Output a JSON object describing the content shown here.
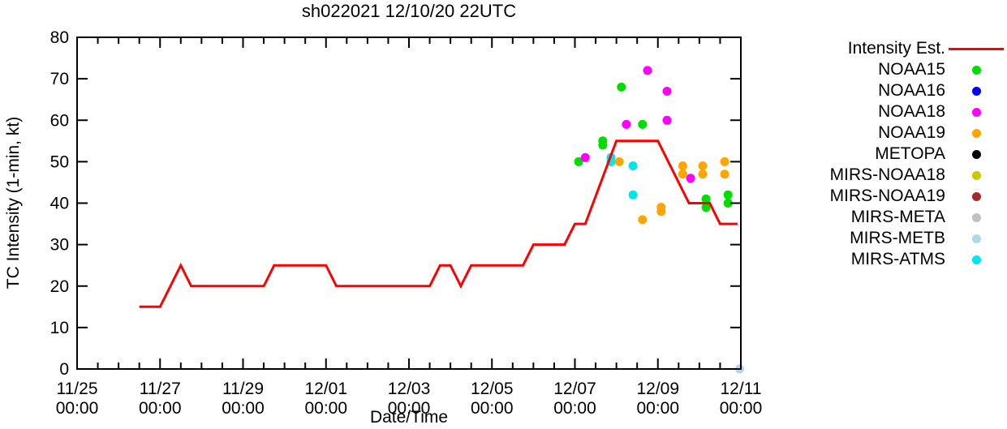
{
  "chart_data": {
    "type": "line+scatter",
    "title": "sh022021 12/10/20 22UTC",
    "xlabel": "Date/Time",
    "ylabel": "TC Intensity (1-min, kt)",
    "x_axis": {
      "unit": "days since 11/25 00:00",
      "range_days": [
        0,
        16
      ],
      "major_tick_every_days": 2,
      "minor_tick_every_days": 0.5,
      "tick_labels": [
        "11/25",
        "11/27",
        "11/29",
        "12/01",
        "12/03",
        "12/05",
        "12/07",
        "12/09",
        "12/11"
      ],
      "tick_time_label": "00:00"
    },
    "y_axis": {
      "range": [
        0,
        80
      ],
      "ticks": [
        0,
        10,
        20,
        30,
        40,
        50,
        60,
        70,
        80
      ]
    },
    "intensity_line": {
      "label": "Intensity Est.",
      "color": "#ff0000",
      "points": [
        [
          1.5,
          15
        ],
        [
          2.0,
          15
        ],
        [
          2.5,
          25
        ],
        [
          2.75,
          20
        ],
        [
          4.5,
          20
        ],
        [
          4.75,
          25
        ],
        [
          6.0,
          25
        ],
        [
          6.25,
          20
        ],
        [
          8.5,
          20
        ],
        [
          8.75,
          25
        ],
        [
          9.0,
          25
        ],
        [
          9.25,
          20
        ],
        [
          9.5,
          25
        ],
        [
          10.75,
          25
        ],
        [
          11.0,
          30
        ],
        [
          11.75,
          30
        ],
        [
          12.0,
          35
        ],
        [
          12.25,
          35
        ],
        [
          13.0,
          55
        ],
        [
          14.0,
          55
        ],
        [
          14.75,
          40
        ],
        [
          15.25,
          40
        ],
        [
          15.5,
          35
        ],
        [
          15.92,
          35
        ]
      ]
    },
    "series": [
      {
        "name": "NOAA15",
        "color": "#00dd00",
        "points": [
          [
            12.09,
            50
          ],
          [
            12.67,
            55
          ],
          [
            12.67,
            54
          ],
          [
            13.12,
            68
          ],
          [
            13.63,
            59
          ],
          [
            15.16,
            41
          ],
          [
            15.16,
            39
          ],
          [
            15.69,
            42
          ],
          [
            15.69,
            40
          ]
        ]
      },
      {
        "name": "NOAA16",
        "color": "#0000ff",
        "points": []
      },
      {
        "name": "NOAA18",
        "color": "#ff00ff",
        "points": [
          [
            12.25,
            51
          ],
          [
            13.24,
            59
          ],
          [
            13.75,
            72
          ],
          [
            14.22,
            67
          ],
          [
            14.22,
            60
          ],
          [
            14.79,
            46
          ]
        ]
      },
      {
        "name": "NOAA19",
        "color": "#ffa500",
        "points": [
          [
            13.07,
            50
          ],
          [
            13.63,
            36
          ],
          [
            14.08,
            39
          ],
          [
            14.08,
            38
          ],
          [
            14.6,
            49
          ],
          [
            14.6,
            47
          ],
          [
            15.08,
            49
          ],
          [
            15.08,
            47
          ],
          [
            15.61,
            50
          ],
          [
            15.61,
            47
          ]
        ]
      },
      {
        "name": "METOPA",
        "color": "#000000",
        "points": []
      },
      {
        "name": "MIRS-NOAA18",
        "color": "#c8c800",
        "points": []
      },
      {
        "name": "MIRS-NOAA19",
        "color": "#a52a2a",
        "points": []
      },
      {
        "name": "MIRS-META",
        "color": "#c0c0c0",
        "points": []
      },
      {
        "name": "MIRS-METB",
        "color": "#add8e6",
        "points": [
          [
            15.97,
            0
          ]
        ]
      },
      {
        "name": "MIRS-ATMS",
        "color": "#00e5ee",
        "points": [
          [
            12.87,
            51
          ],
          [
            12.87,
            50
          ],
          [
            13.4,
            49
          ],
          [
            13.4,
            42
          ]
        ]
      }
    ],
    "legend_position": "right"
  }
}
